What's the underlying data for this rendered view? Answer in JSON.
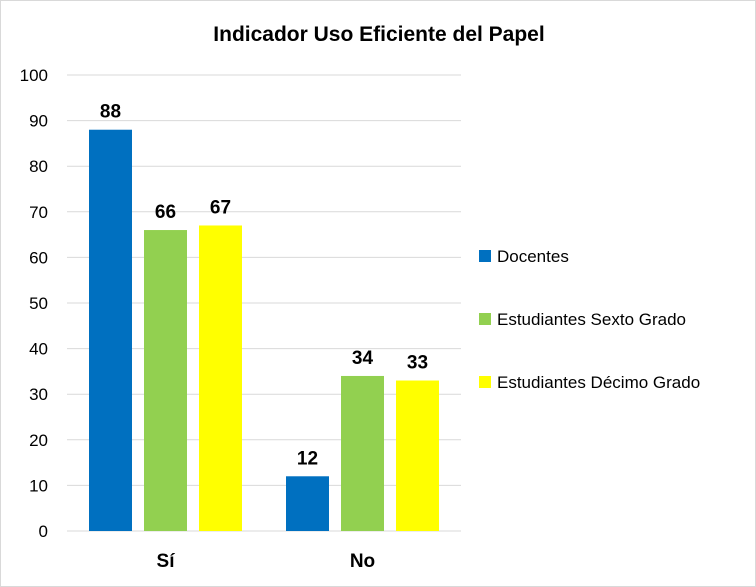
{
  "chart_data": {
    "type": "bar",
    "title": "Indicador  Uso Eficiente del Papel",
    "categories": [
      "Sí",
      "No"
    ],
    "series": [
      {
        "name": "Docentes",
        "values": [
          88,
          12
        ],
        "color": "#0070C0"
      },
      {
        "name": "Estudiantes Sexto Grado",
        "values": [
          66,
          34
        ],
        "color": "#92D050"
      },
      {
        "name": "Estudiantes Décimo Grado",
        "values": [
          67,
          33
        ],
        "color": "#FFFF00"
      }
    ],
    "ylim": [
      0,
      100
    ],
    "yticks": [
      0,
      10,
      20,
      30,
      40,
      50,
      60,
      70,
      80,
      90,
      100
    ],
    "grid": true,
    "legend_position": "right",
    "data_labels": true
  }
}
